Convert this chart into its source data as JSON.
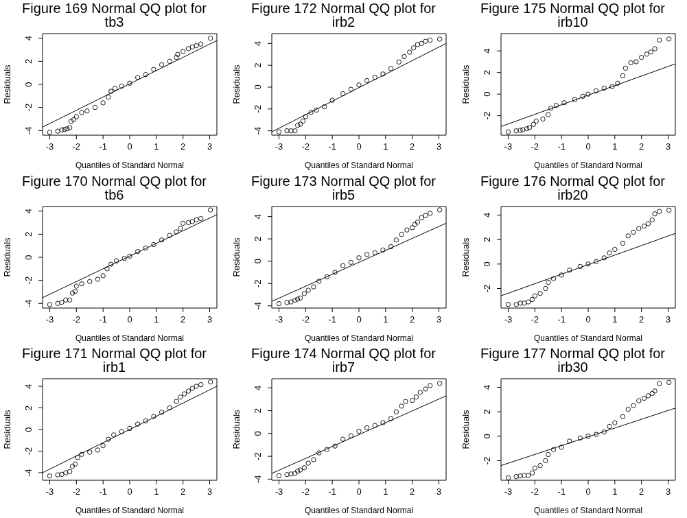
{
  "chart_data": [
    {
      "type": "scatter",
      "title": "Figure 169 Normal QQ plot for tb3",
      "xlabel": "Quantiles of Standard Normal",
      "ylabel": "Residuals",
      "xlim": [
        -3.27,
        3.27
      ],
      "xticks": [
        -3,
        -2,
        -1,
        0,
        1,
        2,
        3
      ],
      "ylim": [
        -4.4,
        4.4
      ],
      "yticks": [
        -4,
        -2,
        0,
        2,
        4
      ],
      "series": [
        {
          "marker": "circle",
          "color": "#000000",
          "x": [
            -3,
            -2.7,
            -2.55,
            -2.45,
            -2.35,
            -2.25,
            -2.2,
            -2.1,
            -2,
            -1.8,
            -1.6,
            -1.3,
            -1,
            -0.8,
            -0.7,
            -0.55,
            -0.3,
            0,
            0.3,
            0.6,
            0.9,
            1.2,
            1.5,
            1.75,
            1.8,
            2,
            2.2,
            2.35,
            2.5,
            2.67,
            3.03
          ],
          "values": [
            -4.15,
            -4.05,
            -3.95,
            -3.9,
            -3.85,
            -3.75,
            -3.2,
            -3.05,
            -2.8,
            -2.45,
            -2.3,
            -2,
            -1.6,
            -1.1,
            -0.6,
            -0.35,
            -0.15,
            0.1,
            0.6,
            0.85,
            1.3,
            1.7,
            2,
            2.35,
            2.6,
            2.85,
            3.1,
            3.25,
            3.35,
            3.5,
            4
          ]
        },
        {
          "type": "line",
          "color": "#000000",
          "x": [
            -3.27,
            3.27
          ],
          "values": [
            -3.7,
            3.8
          ]
        }
      ]
    },
    {
      "type": "scatter",
      "title": "Figure 172 Normal QQ plot for irb2",
      "xlabel": "Quantiles of Standard Normal",
      "ylabel": "Residuals",
      "xlim": [
        -3.27,
        3.27
      ],
      "xticks": [
        -3,
        -2,
        -1,
        0,
        1,
        2,
        3
      ],
      "ylim": [
        -4.4,
        4.9
      ],
      "yticks": [
        -4,
        -2,
        0,
        2,
        4
      ],
      "series": [
        {
          "marker": "circle",
          "color": "#000000",
          "x": [
            -3,
            -2.7,
            -2.55,
            -2.4,
            -2.3,
            -2.2,
            -2.1,
            -2,
            -1.8,
            -1.6,
            -1.3,
            -1,
            -0.6,
            -0.3,
            0,
            0.3,
            0.6,
            0.9,
            1.2,
            1.5,
            1.7,
            1.9,
            2.05,
            2.2,
            2.35,
            2.5,
            2.67,
            3.03
          ],
          "values": [
            -4.1,
            -4,
            -4,
            -4,
            -3.5,
            -3.4,
            -3.1,
            -2.7,
            -2.3,
            -2.1,
            -1.8,
            -1.2,
            -0.6,
            -0.2,
            0.2,
            0.6,
            0.9,
            1.2,
            1.7,
            2.3,
            2.8,
            3.2,
            3.6,
            3.9,
            4,
            4.2,
            4.3,
            4.4
          ]
        },
        {
          "type": "line",
          "color": "#000000",
          "x": [
            -3.27,
            3.27
          ],
          "values": [
            -4.1,
            4
          ]
        }
      ]
    },
    {
      "type": "scatter",
      "title": "Figure 175 Normal QQ plot for irb10",
      "xlabel": "Quantiles of Standard Normal",
      "ylabel": "Residuals",
      "xlim": [
        -3.27,
        3.27
      ],
      "xticks": [
        -3,
        -2,
        -1,
        0,
        1,
        2,
        3
      ],
      "ylim": [
        -3.8,
        5.6
      ],
      "yticks": [
        -2,
        0,
        2,
        4
      ],
      "series": [
        {
          "marker": "circle",
          "color": "#000000",
          "x": [
            -3,
            -2.7,
            -2.55,
            -2.45,
            -2.3,
            -2.2,
            -2.05,
            -1.95,
            -1.7,
            -1.5,
            -1.4,
            -1.2,
            -0.9,
            -0.5,
            -0.2,
            0,
            0.3,
            0.6,
            0.9,
            1.1,
            1.3,
            1.4,
            1.6,
            1.8,
            2,
            2.2,
            2.35,
            2.5,
            2.67,
            3.03
          ],
          "values": [
            -3.5,
            -3.4,
            -3.35,
            -3.3,
            -3.2,
            -3.1,
            -2.8,
            -2.5,
            -2.3,
            -1.9,
            -1.3,
            -1.05,
            -0.8,
            -0.5,
            -0.2,
            0,
            0.3,
            0.55,
            0.7,
            1,
            1.7,
            2.4,
            2.9,
            3,
            3.4,
            3.7,
            3.9,
            4.2,
            5,
            5.1
          ]
        },
        {
          "type": "line",
          "color": "#000000",
          "x": [
            -3.27,
            3.27
          ],
          "values": [
            -3,
            2.8
          ]
        }
      ]
    },
    {
      "type": "scatter",
      "title": "Figure 170 Normal QQ plot for tb6",
      "xlabel": "Quantiles of Standard Normal",
      "ylabel": "Residuals",
      "xlim": [
        -3.27,
        3.27
      ],
      "xticks": [
        -3,
        -2,
        -1,
        0,
        1,
        2,
        3
      ],
      "ylim": [
        -4.4,
        4.4
      ],
      "yticks": [
        -4,
        -2,
        0,
        2,
        4
      ],
      "series": [
        {
          "marker": "circle",
          "color": "#000000",
          "x": [
            -3,
            -2.7,
            -2.55,
            -2.4,
            -2.25,
            -2.15,
            -2.05,
            -2,
            -1.8,
            -1.5,
            -1.2,
            -1,
            -0.85,
            -0.7,
            -0.5,
            -0.2,
            0,
            0.3,
            0.6,
            0.9,
            1.2,
            1.5,
            1.75,
            1.9,
            2,
            2.2,
            2.35,
            2.5,
            2.67,
            3.03
          ],
          "values": [
            -4.1,
            -4,
            -3.9,
            -3.7,
            -3.7,
            -3.1,
            -2.95,
            -2.5,
            -2.3,
            -2.1,
            -1.9,
            -1.6,
            -1,
            -0.6,
            -0.3,
            -0.1,
            0.1,
            0.5,
            0.8,
            1.1,
            1.5,
            1.9,
            2.2,
            2.5,
            2.95,
            3,
            3.1,
            3.25,
            3.35,
            4.1
          ]
        },
        {
          "type": "line",
          "color": "#000000",
          "x": [
            -3.27,
            3.27
          ],
          "values": [
            -3.5,
            3.7
          ]
        }
      ]
    },
    {
      "type": "scatter",
      "title": "Figure 173 Normal QQ plot for irb5",
      "xlabel": "Quantiles of Standard Normal",
      "ylabel": "Residuals",
      "xlim": [
        -3.27,
        3.27
      ],
      "xticks": [
        -3,
        -2,
        -1,
        0,
        1,
        2,
        3
      ],
      "ylim": [
        -4.2,
        4.9
      ],
      "yticks": [
        -4,
        -2,
        0,
        2,
        4
      ],
      "series": [
        {
          "marker": "circle",
          "color": "#000000",
          "x": [
            -3,
            -2.7,
            -2.55,
            -2.4,
            -2.3,
            -2.2,
            -2.05,
            -1.9,
            -1.7,
            -1.5,
            -1.2,
            -0.9,
            -0.6,
            -0.3,
            0,
            0.3,
            0.6,
            0.9,
            1.2,
            1.4,
            1.6,
            1.8,
            2,
            2.1,
            2.2,
            2.35,
            2.5,
            2.67,
            3.03
          ],
          "values": [
            -3.8,
            -3.7,
            -3.65,
            -3.5,
            -3.4,
            -3.3,
            -2.9,
            -2.6,
            -2.3,
            -1.8,
            -1.4,
            -1,
            -0.4,
            -0.1,
            0.3,
            0.6,
            0.75,
            1,
            1.3,
            1.9,
            2.4,
            2.8,
            3,
            3.3,
            3.5,
            3.9,
            4.1,
            4.3,
            4.6
          ]
        },
        {
          "type": "line",
          "color": "#000000",
          "x": [
            -3.27,
            3.27
          ],
          "values": [
            -3.6,
            3.4
          ]
        }
      ]
    },
    {
      "type": "scatter",
      "title": "Figure 176 Normal QQ plot for irb20",
      "xlabel": "Quantiles of Standard Normal",
      "ylabel": "Residuals",
      "xlim": [
        -3.27,
        3.27
      ],
      "xticks": [
        -3,
        -2,
        -1,
        0,
        1,
        2,
        3
      ],
      "ylim": [
        -3.6,
        4.7
      ],
      "yticks": [
        -2,
        0,
        2,
        4
      ],
      "series": [
        {
          "marker": "circle",
          "color": "#000000",
          "x": [
            -3,
            -2.7,
            -2.55,
            -2.4,
            -2.25,
            -2.1,
            -2,
            -1.8,
            -1.6,
            -1.5,
            -1.3,
            -1,
            -0.7,
            -0.3,
            0,
            0.3,
            0.6,
            0.8,
            1,
            1.3,
            1.5,
            1.7,
            1.9,
            2.1,
            2.25,
            2.4,
            2.5,
            2.67,
            3.03
          ],
          "values": [
            -3.3,
            -3.3,
            -3.2,
            -3.2,
            -3.1,
            -2.9,
            -2.6,
            -2.4,
            -2,
            -1.5,
            -1.2,
            -0.9,
            -0.5,
            -0.2,
            0,
            0.2,
            0.5,
            0.9,
            1.2,
            1.7,
            2.3,
            2.6,
            2.9,
            3.1,
            3.3,
            3.6,
            4.1,
            4.3,
            4.4
          ]
        },
        {
          "type": "line",
          "color": "#000000",
          "x": [
            -3.27,
            3.27
          ],
          "values": [
            -2.6,
            2.5
          ]
        }
      ]
    },
    {
      "type": "scatter",
      "title": "Figure 171 Normal QQ plot for irb1",
      "xlabel": "Quantiles of Standard Normal",
      "ylabel": "Residuals",
      "xlim": [
        -3.27,
        3.27
      ],
      "xticks": [
        -3,
        -2,
        -1,
        0,
        1,
        2,
        3
      ],
      "ylim": [
        -4.7,
        4.7
      ],
      "yticks": [
        -4,
        -2,
        0,
        2,
        4
      ],
      "series": [
        {
          "marker": "circle",
          "color": "#000000",
          "x": [
            -3,
            -2.7,
            -2.55,
            -2.4,
            -2.25,
            -2.15,
            -2.05,
            -1.95,
            -1.8,
            -1.5,
            -1.2,
            -1,
            -0.8,
            -0.6,
            -0.3,
            0,
            0.3,
            0.6,
            0.9,
            1.2,
            1.5,
            1.75,
            1.9,
            2.05,
            2.2,
            2.35,
            2.5,
            2.67,
            3.03
          ],
          "values": [
            -4.3,
            -4.2,
            -4.15,
            -4,
            -3.9,
            -3.4,
            -3.2,
            -2.6,
            -2.3,
            -2.1,
            -1.9,
            -1.5,
            -0.9,
            -0.5,
            -0.2,
            0.1,
            0.5,
            0.8,
            1.2,
            1.6,
            2,
            2.6,
            3,
            3.3,
            3.55,
            3.8,
            4,
            4.15,
            4.4
          ]
        },
        {
          "type": "line",
          "color": "#000000",
          "x": [
            -3.27,
            3.27
          ],
          "values": [
            -4,
            4
          ]
        }
      ]
    },
    {
      "type": "scatter",
      "title": "Figure 174 Normal QQ plot for irb7",
      "xlabel": "Quantiles of Standard Normal",
      "ylabel": "Residuals",
      "xlim": [
        -3.27,
        3.27
      ],
      "xticks": [
        -3,
        -2,
        -1,
        0,
        1,
        2,
        3
      ],
      "ylim": [
        -4.1,
        4.8
      ],
      "yticks": [
        -4,
        -2,
        0,
        2,
        4
      ],
      "series": [
        {
          "marker": "circle",
          "color": "#000000",
          "x": [
            -3,
            -2.7,
            -2.55,
            -2.4,
            -2.3,
            -2.2,
            -2.05,
            -1.9,
            -1.7,
            -1.5,
            -1.2,
            -0.9,
            -0.6,
            -0.3,
            0,
            0.3,
            0.6,
            0.9,
            1.2,
            1.4,
            1.6,
            1.75,
            2,
            2.15,
            2.3,
            2.5,
            2.67,
            3.03
          ],
          "values": [
            -3.7,
            -3.6,
            -3.55,
            -3.5,
            -3.3,
            -3.2,
            -3,
            -2.6,
            -2.3,
            -1.7,
            -1.4,
            -1.1,
            -0.5,
            -0.2,
            0.2,
            0.5,
            0.7,
            0.95,
            1.3,
            1.9,
            2.4,
            2.8,
            2.9,
            3.2,
            3.6,
            3.9,
            4.2,
            4.4
          ]
        },
        {
          "type": "line",
          "color": "#000000",
          "x": [
            -3.27,
            3.27
          ],
          "values": [
            -3.5,
            3.3
          ]
        }
      ]
    },
    {
      "type": "scatter",
      "title": "Figure 177 Normal QQ plot for irb30",
      "xlabel": "Quantiles of Standard Normal",
      "ylabel": "Residuals",
      "xlim": [
        -3.27,
        3.27
      ],
      "xticks": [
        -3,
        -2,
        -1,
        0,
        1,
        2,
        3
      ],
      "ylim": [
        -3.6,
        4.7
      ],
      "yticks": [
        -2,
        0,
        2,
        4
      ],
      "series": [
        {
          "marker": "circle",
          "color": "#000000",
          "x": [
            -3,
            -2.7,
            -2.55,
            -2.4,
            -2.25,
            -2.1,
            -2,
            -1.8,
            -1.6,
            -1.5,
            -1.3,
            -1,
            -0.7,
            -0.3,
            0,
            0.3,
            0.6,
            0.8,
            1,
            1.3,
            1.5,
            1.7,
            1.9,
            2.1,
            2.25,
            2.4,
            2.5,
            2.67,
            3.03
          ],
          "values": [
            -3.4,
            -3.3,
            -3.25,
            -3.2,
            -3.2,
            -3,
            -2.6,
            -2.4,
            -2,
            -1.5,
            -1.1,
            -0.9,
            -0.4,
            -0.15,
            0,
            0.15,
            0.35,
            0.8,
            1.1,
            1.6,
            2.2,
            2.5,
            2.9,
            3.1,
            3.3,
            3.5,
            3.7,
            4.3,
            4.4
          ]
        },
        {
          "type": "line",
          "color": "#000000",
          "x": [
            -3.27,
            3.27
          ],
          "values": [
            -2.4,
            2.3
          ]
        }
      ]
    }
  ]
}
